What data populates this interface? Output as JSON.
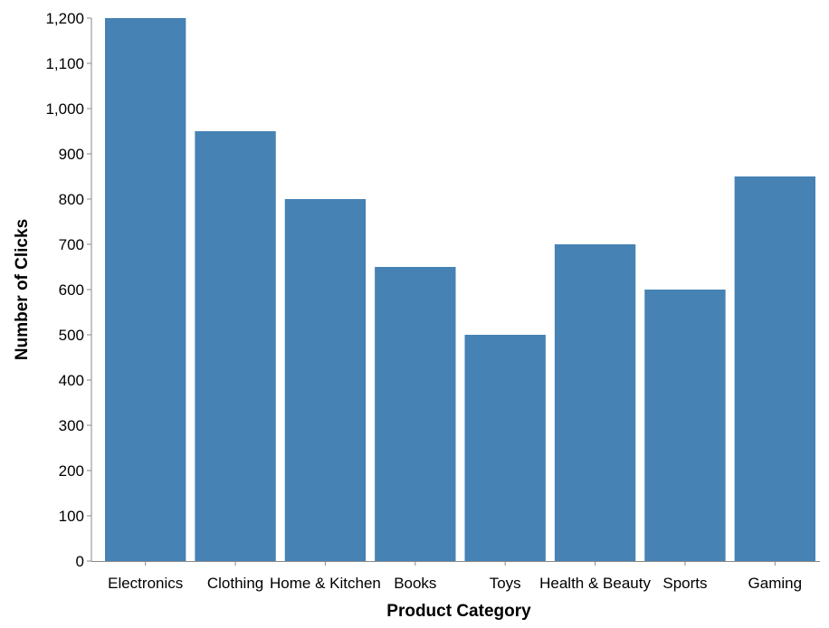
{
  "colors": {
    "bar": "#4682b4",
    "axis": "#888888",
    "text": "#000000",
    "background": "#ffffff"
  },
  "chart_data": {
    "type": "bar",
    "title": "",
    "xlabel": "Product Category",
    "ylabel": "Number of Clicks",
    "categories": [
      "Electronics",
      "Clothing",
      "Home & Kitchen",
      "Books",
      "Toys",
      "Health & Beauty",
      "Sports",
      "Gaming"
    ],
    "values": [
      1200,
      950,
      800,
      650,
      500,
      700,
      600,
      850
    ],
    "ylim": [
      0,
      1200
    ],
    "yticks": [
      0,
      100,
      200,
      300,
      400,
      500,
      600,
      700,
      800,
      900,
      1000,
      1100,
      1200
    ],
    "ytick_labels": [
      "0",
      "100",
      "200",
      "300",
      "400",
      "500",
      "600",
      "700",
      "800",
      "900",
      "1,000",
      "1,100",
      "1,200"
    ],
    "grid": false,
    "legend": "none"
  }
}
